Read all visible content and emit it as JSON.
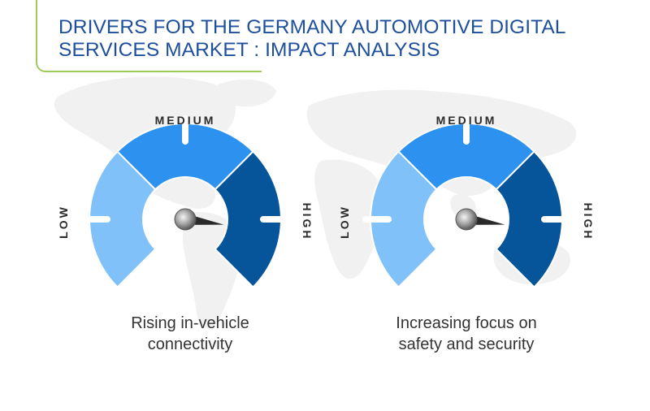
{
  "title": {
    "line1": "DRIVERS FOR THE GERMANY AUTOMOTIVE DIGITAL",
    "line2": "SERVICES MARKET : IMPACT ANALYSIS"
  },
  "levels": {
    "low": "LOW",
    "medium": "MEDIUM",
    "high": "HIGH"
  },
  "colors": {
    "title": "#1d4f9c",
    "accent_line": "#9ccd5a",
    "low": "#7fc1f8",
    "medium": "#2d91f0",
    "high": "#06549a",
    "map": "#f1f1f1"
  },
  "drivers": [
    {
      "caption_line1": "Rising in-vehicle",
      "caption_line2": "connectivity",
      "impact": "high"
    },
    {
      "caption_line1": "Increasing focus on",
      "caption_line2": "safety and security",
      "impact": "high"
    }
  ]
}
